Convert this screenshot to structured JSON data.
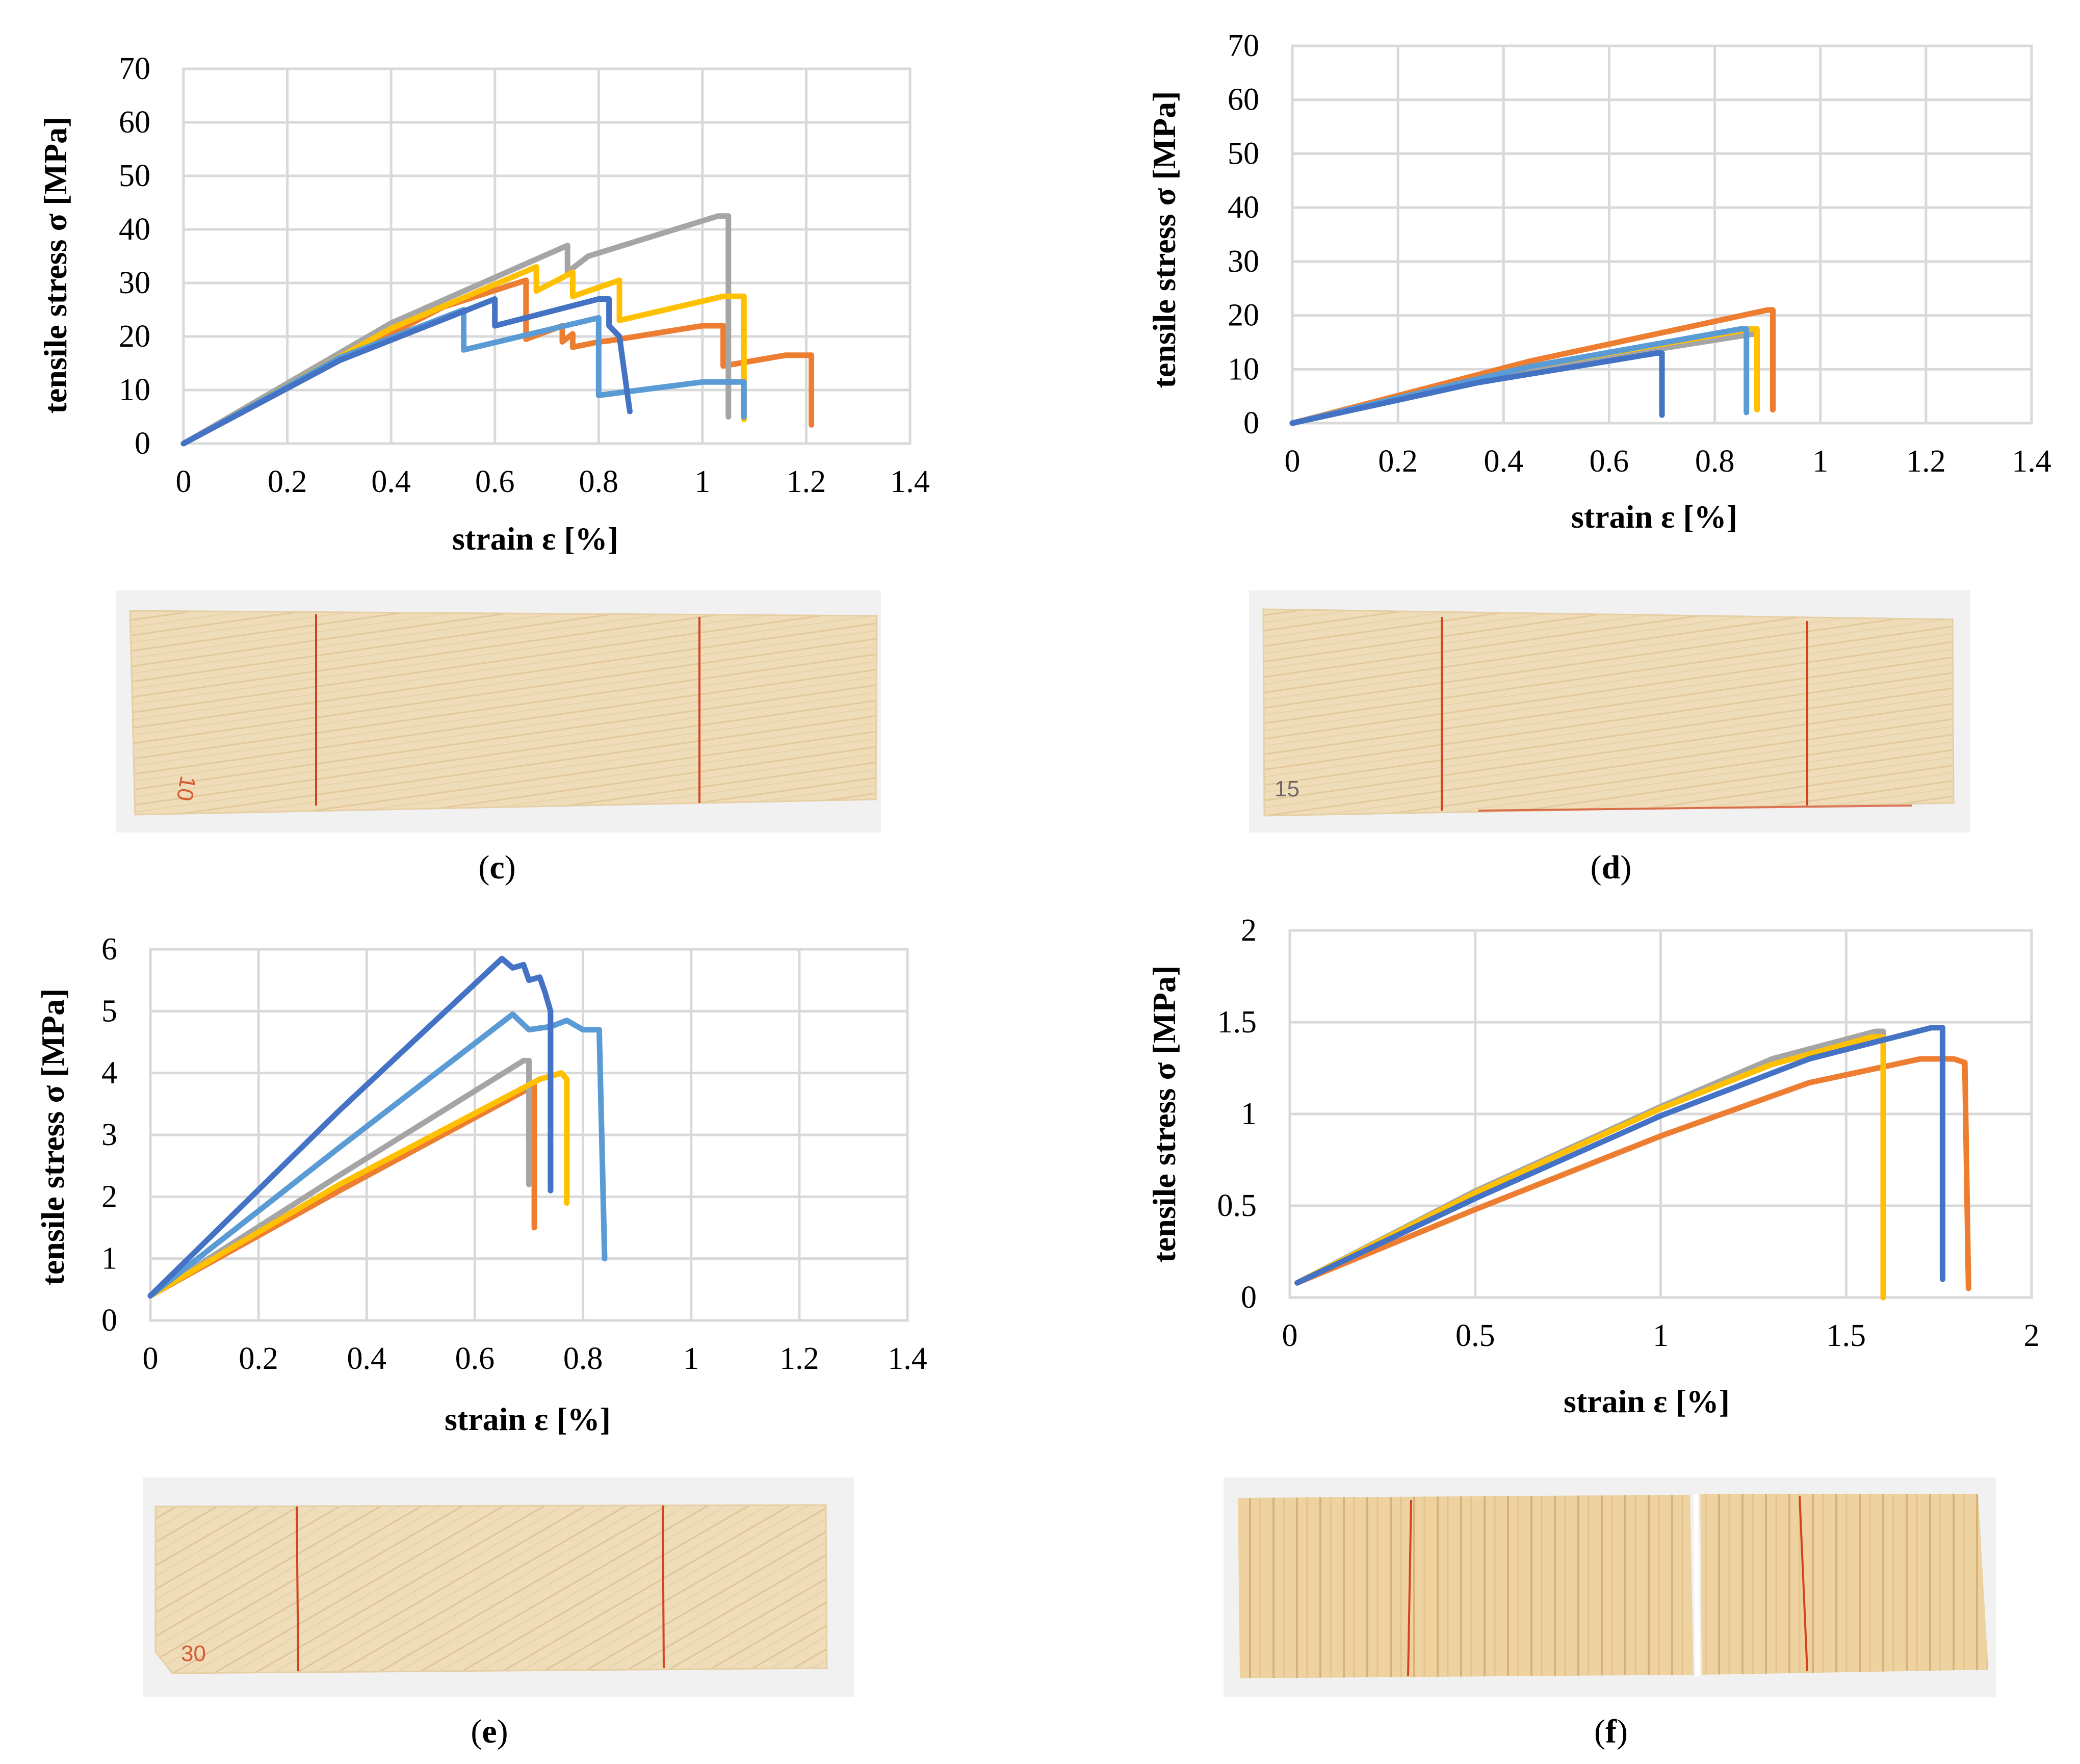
{
  "colors": {
    "orange": "#ED7D31",
    "gray": "#A5A5A5",
    "yellow": "#FFC000",
    "lightblue": "#5B9BD5",
    "blue": "#4472C4",
    "wood": "#efdcb8",
    "woodDark": "#d9bb85",
    "redMark": "#d4431f"
  },
  "chart_data": [
    {
      "id": "c",
      "type": "line",
      "xlabel": "strain ε [%]",
      "ylabel": "tensile stress σ [MPa]",
      "xlim": [
        0,
        1.4
      ],
      "ylim": [
        0,
        70
      ],
      "xticks": [
        0,
        0.2,
        0.4,
        0.6,
        0.8,
        1,
        1.2,
        1.4
      ],
      "xticklabels": [
        "0",
        "0.2",
        "0.4",
        "0.6",
        "0.8",
        "1",
        "1.2",
        "1.4"
      ],
      "yticks": [
        0,
        10,
        20,
        30,
        40,
        50,
        60,
        70
      ],
      "yticklabels": [
        "0",
        "10",
        "20",
        "30",
        "40",
        "50",
        "60",
        "70"
      ],
      "series": [
        {
          "color": "orange",
          "points": [
            [
              0,
              0
            ],
            [
              0.3,
              15.5
            ],
            [
              0.5,
              25.5
            ],
            [
              0.66,
              30.5
            ],
            [
              0.66,
              19.5
            ],
            [
              0.73,
              22
            ],
            [
              0.73,
              19
            ],
            [
              0.75,
              20.5
            ],
            [
              0.75,
              18
            ],
            [
              0.8,
              19
            ],
            [
              0.82,
              19.2
            ],
            [
              1.0,
              22
            ],
            [
              1.04,
              22
            ],
            [
              1.04,
              14.5
            ],
            [
              1.16,
              16.5
            ],
            [
              1.21,
              16.5
            ],
            [
              1.21,
              3.5
            ]
          ]
        },
        {
          "color": "gray",
          "points": [
            [
              0,
              0
            ],
            [
              0.4,
              22.5
            ],
            [
              0.74,
              37
            ],
            [
              0.74,
              32
            ],
            [
              0.78,
              35
            ],
            [
              1.03,
              42.5
            ],
            [
              1.05,
              42.5
            ],
            [
              1.05,
              5
            ]
          ]
        },
        {
          "color": "yellow",
          "points": [
            [
              0,
              0
            ],
            [
              0.4,
              21.5
            ],
            [
              0.68,
              33
            ],
            [
              0.68,
              28.5
            ],
            [
              0.75,
              32
            ],
            [
              0.75,
              27.5
            ],
            [
              0.84,
              30.5
            ],
            [
              0.84,
              23
            ],
            [
              1.04,
              27.5
            ],
            [
              1.08,
              27.5
            ],
            [
              1.08,
              4.5
            ]
          ]
        },
        {
          "color": "lightblue",
          "points": [
            [
              0,
              0
            ],
            [
              0.3,
              16
            ],
            [
              0.54,
              25
            ],
            [
              0.54,
              17.5
            ],
            [
              0.8,
              23.5
            ],
            [
              0.8,
              9
            ],
            [
              1.0,
              11.5
            ],
            [
              1.08,
              11.5
            ],
            [
              1.08,
              5
            ]
          ]
        },
        {
          "color": "blue",
          "points": [
            [
              0,
              0
            ],
            [
              0.3,
              15.5
            ],
            [
              0.6,
              27
            ],
            [
              0.6,
              22
            ],
            [
              0.8,
              27
            ],
            [
              0.82,
              27
            ],
            [
              0.82,
              22
            ],
            [
              0.84,
              20
            ],
            [
              0.86,
              6
            ]
          ]
        }
      ]
    },
    {
      "id": "d",
      "type": "line",
      "xlabel": "strain ε [%]",
      "ylabel": "tensile stress σ [MPa]",
      "xlim": [
        0,
        1.4
      ],
      "ylim": [
        0,
        70
      ],
      "xticks": [
        0,
        0.2,
        0.4,
        0.6,
        0.8,
        1,
        1.2,
        1.4
      ],
      "xticklabels": [
        "0",
        "0.2",
        "0.4",
        "0.6",
        "0.8",
        "1",
        "1.2",
        "1.4"
      ],
      "yticks": [
        0,
        10,
        20,
        30,
        40,
        50,
        60,
        70
      ],
      "yticklabels": [
        "0",
        "10",
        "20",
        "30",
        "40",
        "50",
        "60",
        "70"
      ],
      "series": [
        {
          "color": "orange",
          "points": [
            [
              0,
              0
            ],
            [
              0.45,
              11.5
            ],
            [
              0.9,
              21
            ],
            [
              0.91,
              21
            ],
            [
              0.91,
              2.5
            ]
          ]
        },
        {
          "color": "gray",
          "points": [
            [
              0,
              0
            ],
            [
              0.45,
              10
            ],
            [
              0.87,
              16.5
            ],
            [
              0.88,
              16.5
            ],
            [
              0.88,
              2.5
            ]
          ]
        },
        {
          "color": "yellow",
          "points": [
            [
              0,
              0
            ],
            [
              0.45,
              10.5
            ],
            [
              0.87,
              17.5
            ],
            [
              0.88,
              17.5
            ],
            [
              0.88,
              2.5
            ]
          ]
        },
        {
          "color": "lightblue",
          "points": [
            [
              0,
              0
            ],
            [
              0.45,
              10.5
            ],
            [
              0.85,
              17.5
            ],
            [
              0.86,
              17.5
            ],
            [
              0.86,
              2
            ]
          ]
        },
        {
          "color": "blue",
          "points": [
            [
              0,
              0
            ],
            [
              0.35,
              7.5
            ],
            [
              0.69,
              13
            ],
            [
              0.7,
              13
            ],
            [
              0.7,
              1.5
            ]
          ]
        }
      ]
    },
    {
      "id": "e",
      "type": "line",
      "xlabel": "strain ε [%]",
      "ylabel": "tensile stress σ [MPa]",
      "xlim": [
        0,
        1.4
      ],
      "ylim": [
        0,
        6
      ],
      "xticks": [
        0,
        0.2,
        0.4,
        0.6,
        0.8,
        1,
        1.2,
        1.4
      ],
      "xticklabels": [
        "0",
        "0.2",
        "0.4",
        "0.6",
        "0.8",
        "1",
        "1.2",
        "1.4"
      ],
      "yticks": [
        0,
        1,
        2,
        3,
        4,
        5,
        6
      ],
      "yticklabels": [
        "0",
        "1",
        "2",
        "3",
        "4",
        "5",
        "6"
      ],
      "series": [
        {
          "color": "orange",
          "points": [
            [
              0,
              0.4
            ],
            [
              0.35,
              2.1
            ],
            [
              0.7,
              3.75
            ],
            [
              0.71,
              3.8
            ],
            [
              0.71,
              1.5
            ]
          ]
        },
        {
          "color": "gray",
          "points": [
            [
              0,
              0.4
            ],
            [
              0.35,
              2.35
            ],
            [
              0.69,
              4.2
            ],
            [
              0.7,
              4.2
            ],
            [
              0.7,
              2.2
            ]
          ]
        },
        {
          "color": "yellow",
          "points": [
            [
              0,
              0.4
            ],
            [
              0.35,
              2.2
            ],
            [
              0.72,
              3.9
            ],
            [
              0.76,
              4.0
            ],
            [
              0.77,
              3.9
            ],
            [
              0.77,
              1.9
            ]
          ]
        },
        {
          "color": "lightblue",
          "points": [
            [
              0,
              0.4
            ],
            [
              0.35,
              2.8
            ],
            [
              0.67,
              4.95
            ],
            [
              0.7,
              4.7
            ],
            [
              0.74,
              4.75
            ],
            [
              0.77,
              4.85
            ],
            [
              0.8,
              4.7
            ],
            [
              0.83,
              4.7
            ],
            [
              0.84,
              1.0
            ]
          ]
        },
        {
          "color": "blue",
          "points": [
            [
              0,
              0.4
            ],
            [
              0.35,
              3.4
            ],
            [
              0.65,
              5.85
            ],
            [
              0.67,
              5.7
            ],
            [
              0.69,
              5.75
            ],
            [
              0.7,
              5.5
            ],
            [
              0.72,
              5.55
            ],
            [
              0.73,
              5.3
            ],
            [
              0.74,
              5.0
            ],
            [
              0.74,
              2.1
            ]
          ]
        }
      ]
    },
    {
      "id": "f",
      "type": "line",
      "xlabel": "strain ε [%]",
      "ylabel": "tensile stress σ [MPa]",
      "xlim": [
        0,
        2
      ],
      "ylim": [
        0,
        2
      ],
      "xticks": [
        0,
        0.5,
        1,
        1.5,
        2
      ],
      "xticklabels": [
        "0",
        "0.5",
        "1",
        "1.5",
        "2"
      ],
      "yticks": [
        0,
        0.5,
        1,
        1.5,
        2
      ],
      "yticklabels": [
        "0",
        "0.5",
        "1",
        "1.5",
        "2"
      ],
      "series": [
        {
          "color": "orange",
          "points": [
            [
              0.02,
              0.08
            ],
            [
              0.5,
              0.48
            ],
            [
              1.0,
              0.88
            ],
            [
              1.4,
              1.17
            ],
            [
              1.7,
              1.3
            ],
            [
              1.79,
              1.3
            ],
            [
              1.82,
              1.28
            ],
            [
              1.83,
              0.05
            ]
          ]
        },
        {
          "color": "gray",
          "points": [
            [
              0.02,
              0.08
            ],
            [
              0.5,
              0.58
            ],
            [
              1.0,
              1.04
            ],
            [
              1.3,
              1.3
            ],
            [
              1.58,
              1.45
            ],
            [
              1.6,
              1.45
            ],
            [
              1.6,
              0.16
            ]
          ]
        },
        {
          "color": "yellow",
          "points": [
            [
              0.02,
              0.08
            ],
            [
              0.5,
              0.57
            ],
            [
              1.0,
              1.03
            ],
            [
              1.3,
              1.27
            ],
            [
              1.57,
              1.42
            ],
            [
              1.6,
              1.42
            ],
            [
              1.6,
              0.0
            ]
          ]
        },
        {
          "color": "blue",
          "points": [
            [
              0.02,
              0.08
            ],
            [
              0.5,
              0.54
            ],
            [
              1.0,
              0.99
            ],
            [
              1.4,
              1.3
            ],
            [
              1.73,
              1.47
            ],
            [
              1.76,
              1.47
            ],
            [
              1.76,
              0.1
            ]
          ]
        }
      ]
    }
  ],
  "captions": [
    {
      "open": "(",
      "letter": "c",
      "close": ")"
    },
    {
      "open": "(",
      "letter": "d",
      "close": ")"
    },
    {
      "open": "(",
      "letter": "e",
      "close": ")"
    },
    {
      "open": "(",
      "letter": "f",
      "close": ")"
    }
  ],
  "specimens": [
    {
      "label": "10"
    },
    {
      "label": "15"
    },
    {
      "label": "30"
    }
  ]
}
